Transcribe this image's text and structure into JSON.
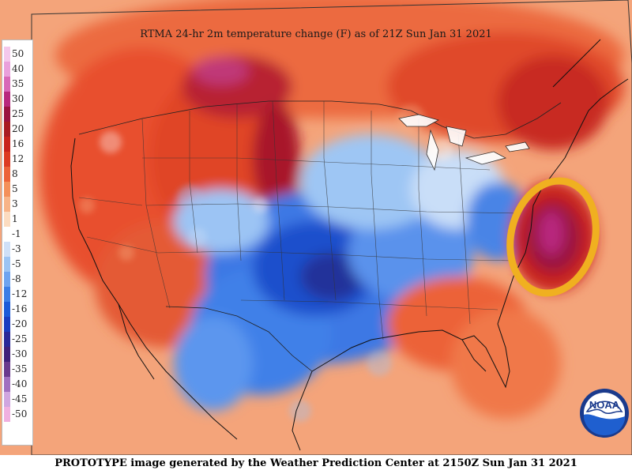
{
  "map": {
    "title": "RTMA 24-hr 2m temperature change (F) as of 21Z Sun Jan 31 2021",
    "footer": "PROTOTYPE image generated by the Weather Prediction Center at 2150Z Sun Jan 31 2021",
    "logo_text": "NOAA",
    "highlight_color": "#f0b020"
  },
  "legend": {
    "items": [
      {
        "label": "50",
        "color": "#f4c8ec"
      },
      {
        "label": "40",
        "color": "#eaa0dc"
      },
      {
        "label": "35",
        "color": "#d868b8"
      },
      {
        "label": "30",
        "color": "#b8287e"
      },
      {
        "label": "25",
        "color": "#9a1240"
      },
      {
        "label": "20",
        "color": "#a81a22"
      },
      {
        "label": "16",
        "color": "#c8221c"
      },
      {
        "label": "12",
        "color": "#dc3a22"
      },
      {
        "label": "8",
        "color": "#ec6238"
      },
      {
        "label": "5",
        "color": "#f4905a"
      },
      {
        "label": "3",
        "color": "#f8b488"
      },
      {
        "label": "1",
        "color": "#fcdcc0"
      },
      {
        "label": "-1",
        "color": "#ffffff"
      },
      {
        "label": "-3",
        "color": "#cfe0f8"
      },
      {
        "label": "-5",
        "color": "#9cc4f4"
      },
      {
        "label": "-8",
        "color": "#6ea4f0"
      },
      {
        "label": "-12",
        "color": "#3c7ee6"
      },
      {
        "label": "-16",
        "color": "#1c5ad8"
      },
      {
        "label": "-20",
        "color": "#1a3cc0"
      },
      {
        "label": "-25",
        "color": "#2a2898"
      },
      {
        "label": "-30",
        "color": "#40207a"
      },
      {
        "label": "-35",
        "color": "#6a3a8e"
      },
      {
        "label": "-40",
        "color": "#a070c0"
      },
      {
        "label": "-45",
        "color": "#d0a6e0"
      },
      {
        "label": "-50",
        "color": "#f0b0e0"
      }
    ]
  }
}
